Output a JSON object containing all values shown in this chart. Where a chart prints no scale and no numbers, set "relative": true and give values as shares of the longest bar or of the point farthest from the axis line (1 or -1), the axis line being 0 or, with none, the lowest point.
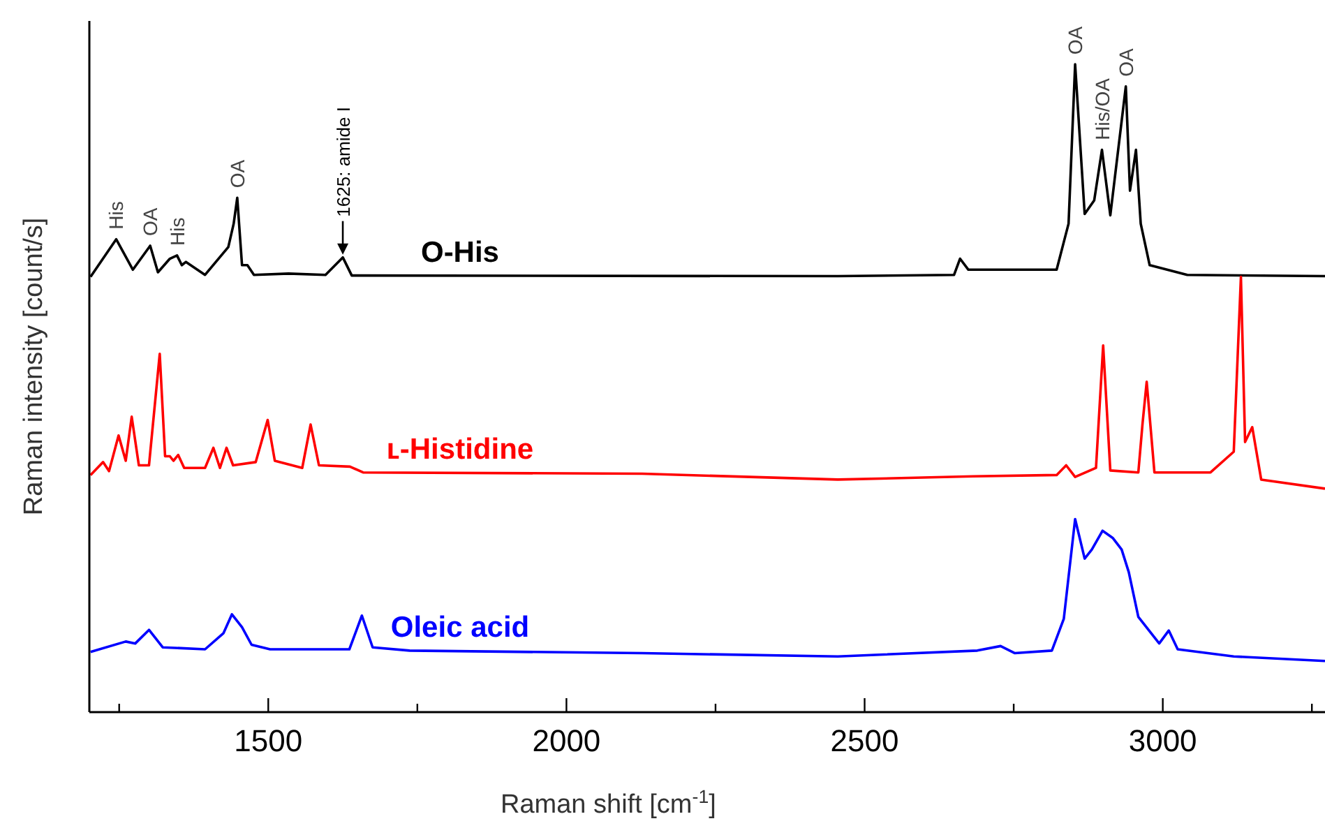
{
  "chart_data": {
    "type": "line",
    "relative": true,
    "xlabel": "Raman shift [cm$^{-1}$]",
    "ylabel": "Raman intensity [count/s]",
    "xlim": [
      1200,
      3272
    ],
    "xticks": [
      {
        "value": 1250,
        "label": null
      },
      1500,
      {
        "value": 1750,
        "label": null
      },
      2000,
      {
        "value": 2250,
        "label": null
      },
      2500,
      {
        "value": 2750,
        "label": null
      },
      3000,
      {
        "value": 3250,
        "label": null
      }
    ],
    "series": [
      {
        "name": "O-His",
        "color": "#000000",
        "x": [
          1202,
          1245,
          1273,
          1302,
          1315,
          1335,
          1347,
          1355,
          1362,
          1394,
          1433,
          1442,
          1448,
          1456,
          1465,
          1476,
          1534,
          1596,
          1625,
          1640,
          2455,
          2650,
          2660,
          2674,
          2822,
          2842,
          2853,
          2869,
          2885,
          2898,
          2912,
          2938,
          2945,
          2955,
          2963,
          2978,
          3041,
          3272
        ],
        "values": [
          0.672,
          0.73,
          0.683,
          0.72,
          0.679,
          0.7,
          0.705,
          0.69,
          0.695,
          0.675,
          0.718,
          0.754,
          0.794,
          0.69,
          0.69,
          0.675,
          0.677,
          0.675,
          0.702,
          0.674,
          0.673,
          0.675,
          0.7,
          0.683,
          0.683,
          0.754,
          1.0,
          0.769,
          0.79,
          0.868,
          0.767,
          0.966,
          0.805,
          0.868,
          0.754,
          0.69,
          0.675,
          0.673
        ]
      },
      {
        "name": "ʟ-Histidine",
        "color": "#ff0000",
        "x": [
          1202,
          1223,
          1233,
          1249,
          1261,
          1271,
          1283,
          1300,
          1318,
          1327,
          1335,
          1341,
          1349,
          1359,
          1394,
          1408,
          1419,
          1430,
          1441,
          1479,
          1499,
          1511,
          1557,
          1571,
          1585,
          1637,
          1659,
          2127,
          2455,
          2682,
          2822,
          2838,
          2853,
          2888,
          2900,
          2912,
          2959,
          2966,
          2973,
          2986,
          3080,
          3119,
          3131,
          3138,
          3150,
          3165,
          3272
        ],
        "values": [
          0.366,
          0.386,
          0.372,
          0.427,
          0.388,
          0.456,
          0.381,
          0.381,
          0.553,
          0.395,
          0.395,
          0.388,
          0.397,
          0.377,
          0.377,
          0.408,
          0.377,
          0.408,
          0.381,
          0.386,
          0.451,
          0.388,
          0.377,
          0.444,
          0.381,
          0.379,
          0.37,
          0.368,
          0.359,
          0.364,
          0.366,
          0.381,
          0.363,
          0.377,
          0.566,
          0.373,
          0.37,
          0.445,
          0.51,
          0.37,
          0.37,
          0.402,
          0.672,
          0.417,
          0.44,
          0.359,
          0.345
        ]
      },
      {
        "name": "Oleic acid",
        "color": "#0000ff",
        "x": [
          1202,
          1261,
          1277,
          1300,
          1323,
          1394,
          1425,
          1439,
          1456,
          1472,
          1503,
          1636,
          1657,
          1675,
          1737,
          2127,
          2455,
          2689,
          2728,
          2752,
          2814,
          2834,
          2853,
          2869,
          2881,
          2899,
          2916,
          2931,
          2943,
          2959,
          2994,
          3010,
          3025,
          3119,
          3272
        ],
        "values": [
          0.093,
          0.109,
          0.106,
          0.127,
          0.1,
          0.097,
          0.122,
          0.151,
          0.131,
          0.104,
          0.097,
          0.097,
          0.149,
          0.1,
          0.095,
          0.091,
          0.086,
          0.095,
          0.102,
          0.091,
          0.095,
          0.144,
          0.298,
          0.237,
          0.251,
          0.28,
          0.269,
          0.251,
          0.216,
          0.147,
          0.106,
          0.126,
          0.097,
          0.086,
          0.079
        ]
      }
    ],
    "annotations": [
      {
        "text": "His",
        "x": 1245,
        "y": 0.73
      },
      {
        "text": "OA",
        "x": 1302,
        "y": 0.72
      },
      {
        "text": "His",
        "x": 1347,
        "y": 0.705
      },
      {
        "text": "OA",
        "x": 1448,
        "y": 0.794
      },
      {
        "text": "1625: amide I",
        "x": 1625,
        "y": 0.702
      },
      {
        "text": "OA",
        "x": 2853,
        "y": 1.0
      },
      {
        "text": "His/OA",
        "x": 2898,
        "y": 0.868
      },
      {
        "text": "OA",
        "x": 2938,
        "y": 0.966
      }
    ]
  }
}
